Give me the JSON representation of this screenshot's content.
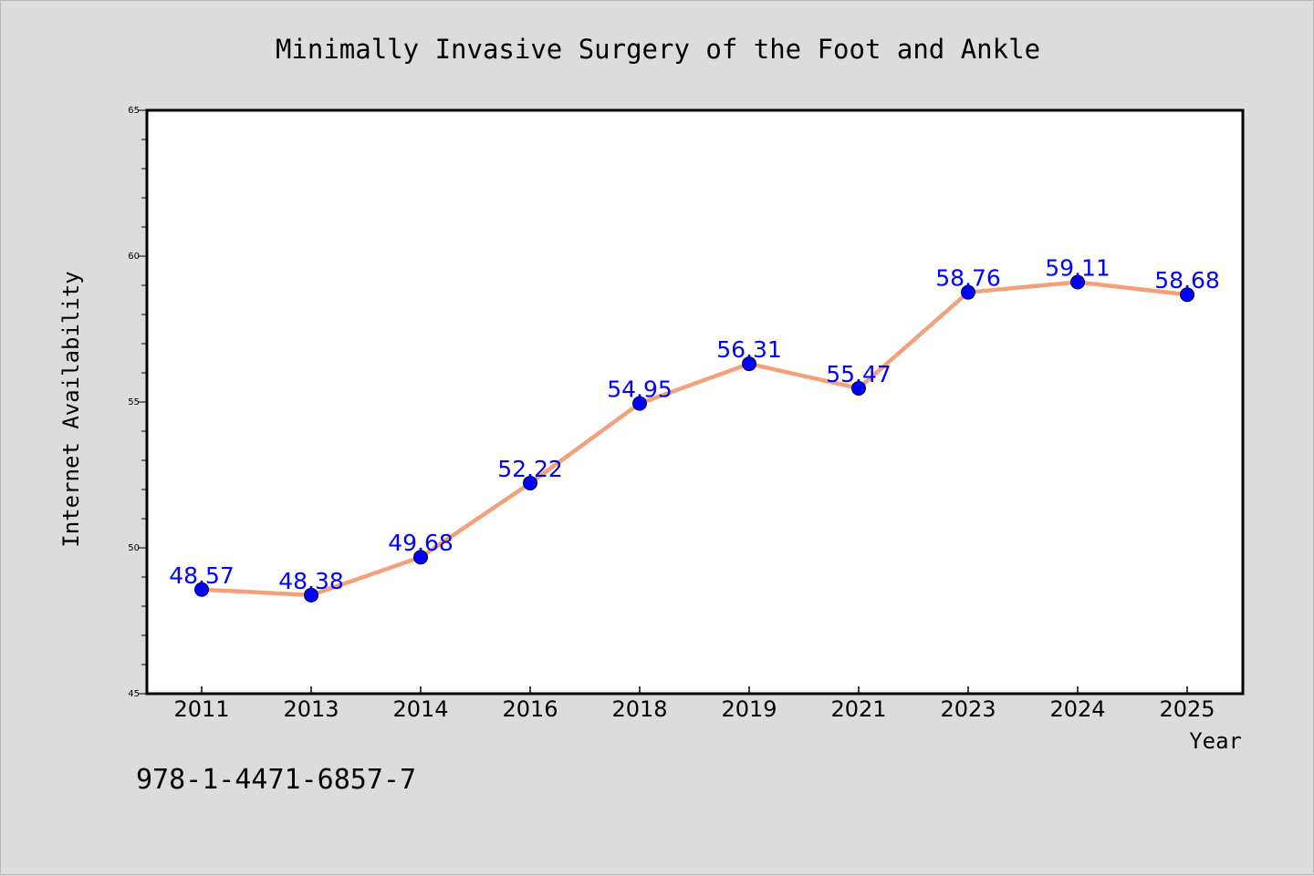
{
  "colors": {
    "background": "#dcdcdc",
    "plot_background": "#ffffff",
    "line": "#f4a07c",
    "marker": "#0000ff",
    "label": "#0000ff"
  },
  "footer": {
    "code": "978-1-4471-6857-7"
  },
  "chart_data": {
    "type": "line",
    "title": "Minimally Invasive Surgery of the Foot and Ankle",
    "xlabel": "Year",
    "ylabel": "Internet Availability",
    "categories": [
      "2011",
      "2013",
      "2014",
      "2016",
      "2018",
      "2019",
      "2021",
      "2023",
      "2024",
      "2025"
    ],
    "series": [
      {
        "values": [
          48.57,
          48.38,
          49.68,
          52.22,
          54.95,
          56.31,
          55.47,
          58.76,
          59.11,
          58.68
        ],
        "data_labels": [
          "48.57",
          "48.38",
          "49.68",
          "52.22",
          "54.95",
          "56.31",
          "55.47",
          "58.76",
          "59.11",
          "58.68"
        ]
      }
    ],
    "ylim": [
      45,
      65
    ],
    "yticks": [
      "45",
      "50",
      "55",
      "60",
      "65"
    ],
    "grid": false,
    "legend": "none"
  }
}
